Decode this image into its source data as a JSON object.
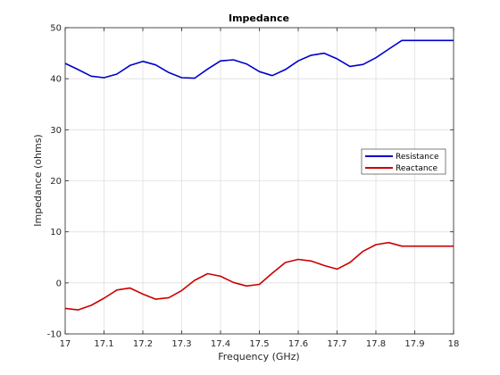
{
  "chart_data": {
    "type": "line",
    "title": "Impedance",
    "xlabel": "Frequency (GHz)",
    "ylabel": "Impedance (ohms)",
    "xlim": [
      17,
      18
    ],
    "ylim": [
      -10,
      50
    ],
    "x_ticks": [
      "17",
      "17.1",
      "17.2",
      "17.3",
      "17.4",
      "17.5",
      "17.6",
      "17.7",
      "17.8",
      "17.9",
      "18"
    ],
    "y_ticks": [
      "-10",
      "0",
      "10",
      "20",
      "30",
      "40",
      "50"
    ],
    "grid": true,
    "legend_position": "right",
    "x": [
      17.0,
      17.033,
      17.067,
      17.1,
      17.133,
      17.167,
      17.2,
      17.233,
      17.267,
      17.3,
      17.333,
      17.367,
      17.4,
      17.433,
      17.467,
      17.5,
      17.533,
      17.567,
      17.6,
      17.633,
      17.667,
      17.7,
      17.733,
      17.767,
      17.8,
      17.833,
      17.867,
      17.9,
      17.933,
      17.967,
      18.0
    ],
    "series": [
      {
        "name": "Resistance",
        "color": "#0000cc",
        "values": [
          43.0,
          41.8,
          40.5,
          40.2,
          40.9,
          42.6,
          43.4,
          42.7,
          41.2,
          40.2,
          40.1,
          41.9,
          43.5,
          43.7,
          42.9,
          41.4,
          40.6,
          41.8,
          43.5,
          44.6,
          45.0,
          43.9,
          42.4,
          42.8,
          44.1,
          45.8,
          47.5,
          47.5,
          47.5,
          47.5,
          47.5
        ]
      },
      {
        "name": "Reactance",
        "color": "#cc0000",
        "values": [
          -5.0,
          -5.3,
          -4.4,
          -3.0,
          -1.4,
          -1.0,
          -2.2,
          -3.2,
          -2.9,
          -1.5,
          0.5,
          1.8,
          1.3,
          0.1,
          -0.6,
          -0.3,
          1.9,
          4.0,
          4.6,
          4.3,
          3.4,
          2.7,
          4.0,
          6.2,
          7.5,
          7.9,
          7.2,
          7.2,
          7.2,
          7.2,
          7.2
        ]
      }
    ]
  }
}
